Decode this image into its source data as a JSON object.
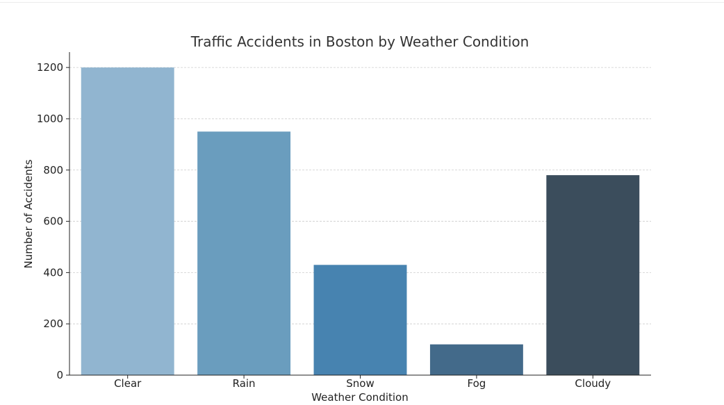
{
  "chart_data": {
    "type": "bar",
    "title": "Traffic Accidents in Boston by Weather Condition",
    "xlabel": "Weather Condition",
    "ylabel": "Number of Accidents",
    "categories": [
      "Clear",
      "Rain",
      "Snow",
      "Fog",
      "Cloudy"
    ],
    "values": [
      1200,
      950,
      430,
      120,
      780
    ],
    "ylim": [
      0,
      1260
    ],
    "yticks": [
      0,
      200,
      400,
      600,
      800,
      1000,
      1200
    ],
    "grid": "horizontal-dashed",
    "colors": [
      "#91b5d0",
      "#6a9dbe",
      "#4783b0",
      "#436a8a",
      "#3b4d5c"
    ]
  }
}
